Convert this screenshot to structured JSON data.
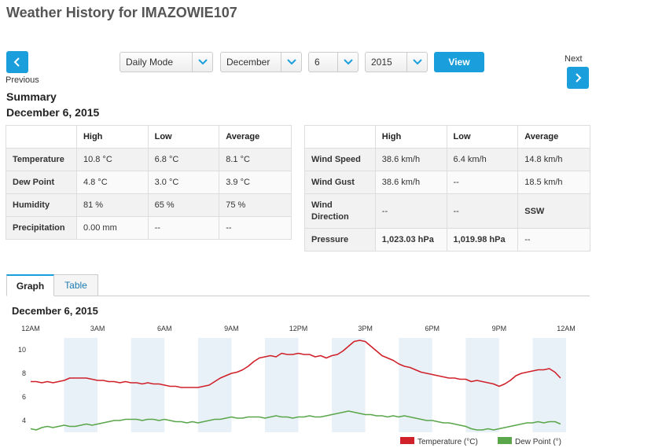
{
  "page": {
    "title": "Weather History for IMAZOWIE107"
  },
  "nav": {
    "previous_label": "Previous",
    "next_label": "Next"
  },
  "filters": {
    "mode": "Daily Mode",
    "month": "December",
    "day": "6",
    "year": "2015",
    "view_label": "View"
  },
  "summary": {
    "heading": "Summary",
    "date": "December 6, 2015",
    "left_table": {
      "headers": [
        "",
        "High",
        "Low",
        "Average"
      ],
      "rows": [
        [
          "Temperature",
          "10.8 °C",
          "6.8 °C",
          "8.1 °C"
        ],
        [
          "Dew Point",
          "4.8 °C",
          "3.0 °C",
          "3.9 °C"
        ],
        [
          "Humidity",
          "81 %",
          "65 %",
          "75 %"
        ],
        [
          "Precipitation",
          "0.00 mm",
          "--",
          "--"
        ]
      ]
    },
    "right_table": {
      "headers": [
        "",
        "High",
        "Low",
        "Average"
      ],
      "rows": [
        [
          "Wind Speed",
          "38.6 km/h",
          "6.4 km/h",
          "14.8 km/h"
        ],
        [
          "Wind Gust",
          "38.6 km/h",
          "--",
          "18.5 km/h"
        ],
        [
          "Wind Direction",
          "--",
          "--",
          "SSW"
        ],
        [
          "Pressure",
          "1,023.03 hPa",
          "1,019.98 hPa",
          "--"
        ]
      ]
    }
  },
  "tabs": {
    "graph": "Graph",
    "table": "Table"
  },
  "graph": {
    "title": "December 6, 2015"
  },
  "chart_data": {
    "type": "line",
    "x_ticks": [
      "12AM",
      "3AM",
      "6AM",
      "9AM",
      "12PM",
      "3PM",
      "6PM",
      "9PM",
      "12AM"
    ],
    "x_range_hours": [
      0,
      24
    ],
    "y_ticks": [
      4,
      6,
      8,
      10
    ],
    "ylim": [
      3.0,
      11.0
    ],
    "colors": {
      "temperature": "#d0202a",
      "dew_point": "#5aa64a",
      "band": "#e9f1f8"
    },
    "series": [
      {
        "name": "Temperature (°C)",
        "x": [
          0.0,
          0.25,
          0.5,
          0.75,
          1.0,
          1.25,
          1.5,
          1.75,
          2.0,
          2.25,
          2.5,
          2.75,
          3.0,
          3.25,
          3.5,
          3.75,
          4.0,
          4.25,
          4.5,
          4.75,
          5.0,
          5.25,
          5.5,
          5.75,
          6.0,
          6.25,
          6.5,
          6.75,
          7.0,
          7.25,
          7.5,
          7.75,
          8.0,
          8.25,
          8.5,
          8.75,
          9.0,
          9.25,
          9.5,
          9.75,
          10.0,
          10.25,
          10.5,
          10.75,
          11.0,
          11.25,
          11.5,
          11.75,
          12.0,
          12.25,
          12.5,
          12.75,
          13.0,
          13.25,
          13.5,
          13.75,
          14.0,
          14.25,
          14.5,
          14.75,
          15.0,
          15.25,
          15.5,
          15.75,
          16.0,
          16.25,
          16.5,
          16.75,
          17.0,
          17.25,
          17.5,
          17.75,
          18.0,
          18.25,
          18.5,
          18.75,
          19.0,
          19.25,
          19.5,
          19.75,
          20.0,
          20.25,
          20.5,
          20.75,
          21.0,
          21.25,
          21.5,
          21.75,
          22.0,
          22.25,
          22.5,
          22.75,
          23.0,
          23.25,
          23.5,
          23.75
        ],
        "values": [
          7.3,
          7.3,
          7.2,
          7.3,
          7.2,
          7.3,
          7.4,
          7.6,
          7.6,
          7.6,
          7.6,
          7.5,
          7.4,
          7.4,
          7.3,
          7.3,
          7.2,
          7.3,
          7.2,
          7.2,
          7.1,
          7.2,
          7.1,
          7.1,
          7.0,
          6.9,
          6.9,
          6.8,
          6.8,
          6.8,
          6.8,
          6.9,
          7.0,
          7.3,
          7.6,
          7.8,
          8.0,
          8.1,
          8.3,
          8.6,
          9.0,
          9.3,
          9.4,
          9.5,
          9.4,
          9.7,
          9.6,
          9.6,
          9.7,
          9.6,
          9.6,
          9.4,
          9.5,
          9.3,
          9.5,
          9.6,
          9.9,
          10.3,
          10.7,
          10.8,
          10.7,
          10.3,
          9.9,
          9.5,
          9.3,
          9.1,
          8.8,
          8.6,
          8.5,
          8.3,
          8.1,
          8.0,
          7.9,
          7.8,
          7.7,
          7.6,
          7.6,
          7.5,
          7.5,
          7.3,
          7.4,
          7.3,
          7.2,
          7.1,
          6.9,
          7.1,
          7.4,
          7.8,
          8.0,
          8.1,
          8.2,
          8.3,
          8.3,
          8.4,
          8.1,
          7.6
        ]
      },
      {
        "name": "Dew Point (°)",
        "x": [
          0.0,
          0.25,
          0.5,
          0.75,
          1.0,
          1.25,
          1.5,
          1.75,
          2.0,
          2.25,
          2.5,
          2.75,
          3.0,
          3.25,
          3.5,
          3.75,
          4.0,
          4.25,
          4.5,
          4.75,
          5.0,
          5.25,
          5.5,
          5.75,
          6.0,
          6.25,
          6.5,
          6.75,
          7.0,
          7.25,
          7.5,
          7.75,
          8.0,
          8.25,
          8.5,
          8.75,
          9.0,
          9.25,
          9.5,
          9.75,
          10.0,
          10.25,
          10.5,
          10.75,
          11.0,
          11.25,
          11.5,
          11.75,
          12.0,
          12.25,
          12.5,
          12.75,
          13.0,
          13.25,
          13.5,
          13.75,
          14.0,
          14.25,
          14.5,
          14.75,
          15.0,
          15.25,
          15.5,
          15.75,
          16.0,
          16.25,
          16.5,
          16.75,
          17.0,
          17.25,
          17.5,
          17.75,
          18.0,
          18.25,
          18.5,
          18.75,
          19.0,
          19.25,
          19.5,
          19.75,
          20.0,
          20.25,
          20.5,
          20.75,
          21.0,
          21.25,
          21.5,
          21.75,
          22.0,
          22.25,
          22.5,
          22.75,
          23.0,
          23.25,
          23.5,
          23.75
        ],
        "values": [
          3.3,
          3.2,
          3.4,
          3.5,
          3.4,
          3.5,
          3.6,
          3.5,
          3.5,
          3.6,
          3.7,
          3.6,
          3.7,
          3.8,
          3.9,
          4.0,
          4.0,
          4.1,
          4.1,
          4.1,
          4.0,
          4.1,
          4.1,
          4.0,
          4.1,
          4.0,
          3.9,
          3.9,
          3.8,
          3.9,
          3.8,
          3.9,
          4.0,
          4.1,
          4.1,
          4.2,
          4.3,
          4.2,
          4.2,
          4.3,
          4.3,
          4.3,
          4.2,
          4.3,
          4.4,
          4.3,
          4.3,
          4.2,
          4.3,
          4.3,
          4.4,
          4.3,
          4.3,
          4.4,
          4.5,
          4.6,
          4.7,
          4.8,
          4.7,
          4.6,
          4.5,
          4.5,
          4.4,
          4.4,
          4.3,
          4.4,
          4.3,
          4.4,
          4.3,
          4.2,
          4.1,
          4.0,
          4.0,
          3.9,
          3.8,
          3.8,
          3.7,
          3.6,
          3.5,
          3.3,
          3.2,
          3.2,
          3.3,
          3.2,
          3.3,
          3.4,
          3.5,
          3.6,
          3.7,
          3.8,
          3.8,
          3.9,
          3.8,
          3.9,
          3.9,
          3.7
        ]
      }
    ]
  }
}
